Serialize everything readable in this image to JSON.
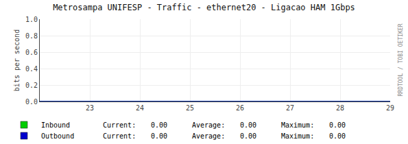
{
  "chart_data": {
    "type": "line",
    "title": "Metrosampa UNIFESP - Traffic - ethernet20 - Ligacao HAM 1Gbps",
    "ylabel": "bits per second",
    "x": [
      22,
      29
    ],
    "series": [
      {
        "name": "Inbound",
        "color": "#00cc00",
        "values": [
          0,
          0
        ],
        "stats": [
          {
            "name": "Current:",
            "value": 0,
            "label": "0.00"
          },
          {
            "name": "Average:",
            "value": 0,
            "label": "0.00"
          },
          {
            "name": "Maximum:",
            "value": 0,
            "label": "0.00"
          }
        ]
      },
      {
        "name": "Outbound",
        "color": "#0000cc",
        "values": [
          0,
          0
        ],
        "stats": [
          {
            "name": "Current:",
            "value": 0,
            "label": "0.00"
          },
          {
            "name": "Average:",
            "value": 0,
            "label": "0.00"
          },
          {
            "name": "Maximum:",
            "value": 0,
            "label": "0.00"
          }
        ]
      }
    ],
    "xlim": [
      22,
      29
    ],
    "ylim": [
      0,
      1.0
    ],
    "xticks": [
      23,
      24,
      25,
      26,
      27,
      28,
      29
    ],
    "yticks": [
      {
        "value": 0.0,
        "label": "0.0"
      },
      0.2,
      0.4,
      0.6,
      0.8,
      {
        "value": 1.0,
        "label": "1.0"
      }
    ],
    "grid": true,
    "annotations": [
      "RRDTOOL / TOBI OETIKER"
    ]
  }
}
